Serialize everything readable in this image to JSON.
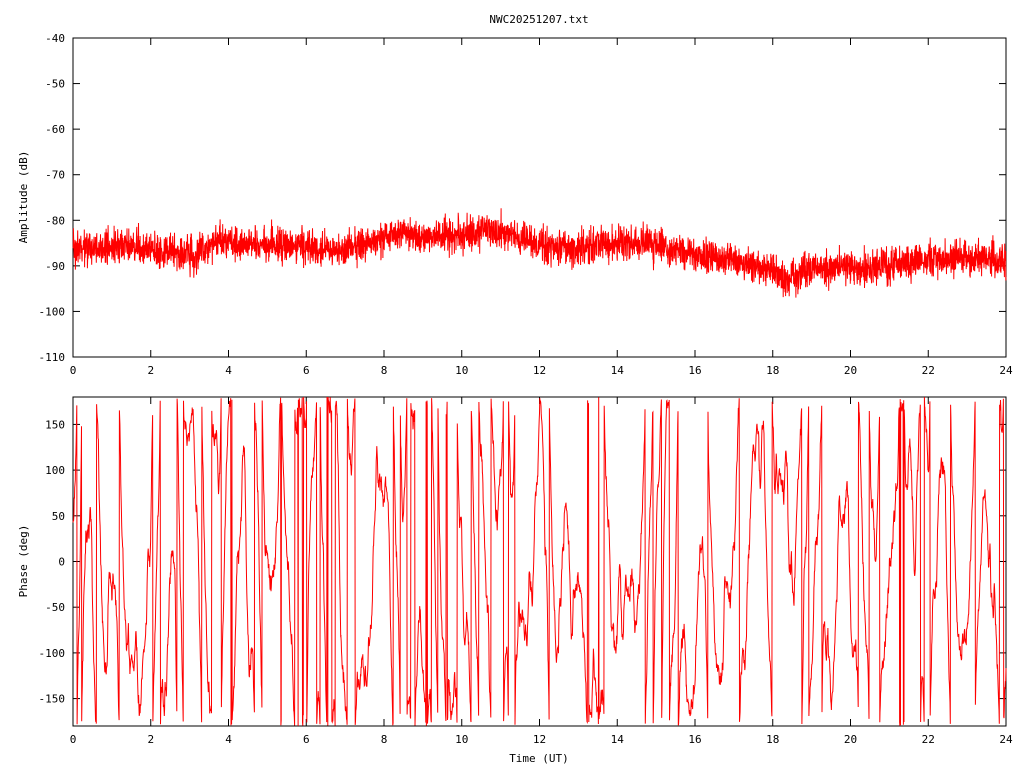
{
  "chart_data": [
    {
      "type": "line",
      "title": "NWC20251207.txt",
      "xlabel": "",
      "ylabel": "Amplitude (dB)",
      "xlim": [
        0,
        24
      ],
      "ylim": [
        -110,
        -40
      ],
      "xticks": [
        "0",
        "2",
        "4",
        "6",
        "8",
        "10",
        "12",
        "14",
        "16",
        "18",
        "20",
        "22",
        "24"
      ],
      "yticks": [
        "-40",
        "-50",
        "-60",
        "-70",
        "-80",
        "-90",
        "-100",
        "-110"
      ],
      "ytick_values": [
        -40,
        -50,
        -60,
        -70,
        -80,
        -90,
        -100,
        -110
      ],
      "grid": false,
      "color": "#ff0000",
      "trend": {
        "x": [
          0,
          1,
          2,
          3,
          3.2,
          3.3,
          4,
          5,
          6,
          7,
          8,
          8.5,
          9,
          10,
          10.5,
          11,
          12,
          13,
          14,
          15,
          16,
          17,
          18,
          18.3,
          19,
          20,
          21,
          22,
          23,
          24
        ],
        "y": [
          -86.5,
          -86,
          -86,
          -87.5,
          -88.5,
          -85.5,
          -85,
          -85,
          -86,
          -86.5,
          -84,
          -82.5,
          -84,
          -83,
          -82,
          -82.5,
          -85.5,
          -86,
          -85,
          -85.5,
          -87.5,
          -89,
          -91,
          -93,
          -90.5,
          -90.5,
          -90,
          -88.5,
          -88,
          -89
        ]
      },
      "noise_band_db": 3.6
    },
    {
      "type": "line",
      "title": "",
      "xlabel": "Time (UT)",
      "ylabel": "Phase (deg)",
      "xlim": [
        0,
        24
      ],
      "ylim": [
        -180,
        180
      ],
      "xticks": [
        "0",
        "2",
        "4",
        "6",
        "8",
        "10",
        "12",
        "14",
        "16",
        "18",
        "20",
        "22",
        "24"
      ],
      "yticks": [
        "150",
        "100",
        "50",
        "0",
        "-50",
        "-100",
        "-150"
      ],
      "ytick_values": [
        150,
        100,
        50,
        0,
        -50,
        -100,
        -150
      ],
      "grid": false,
      "color": "#ff0000",
      "wrap_range": [
        -180,
        180
      ]
    }
  ]
}
